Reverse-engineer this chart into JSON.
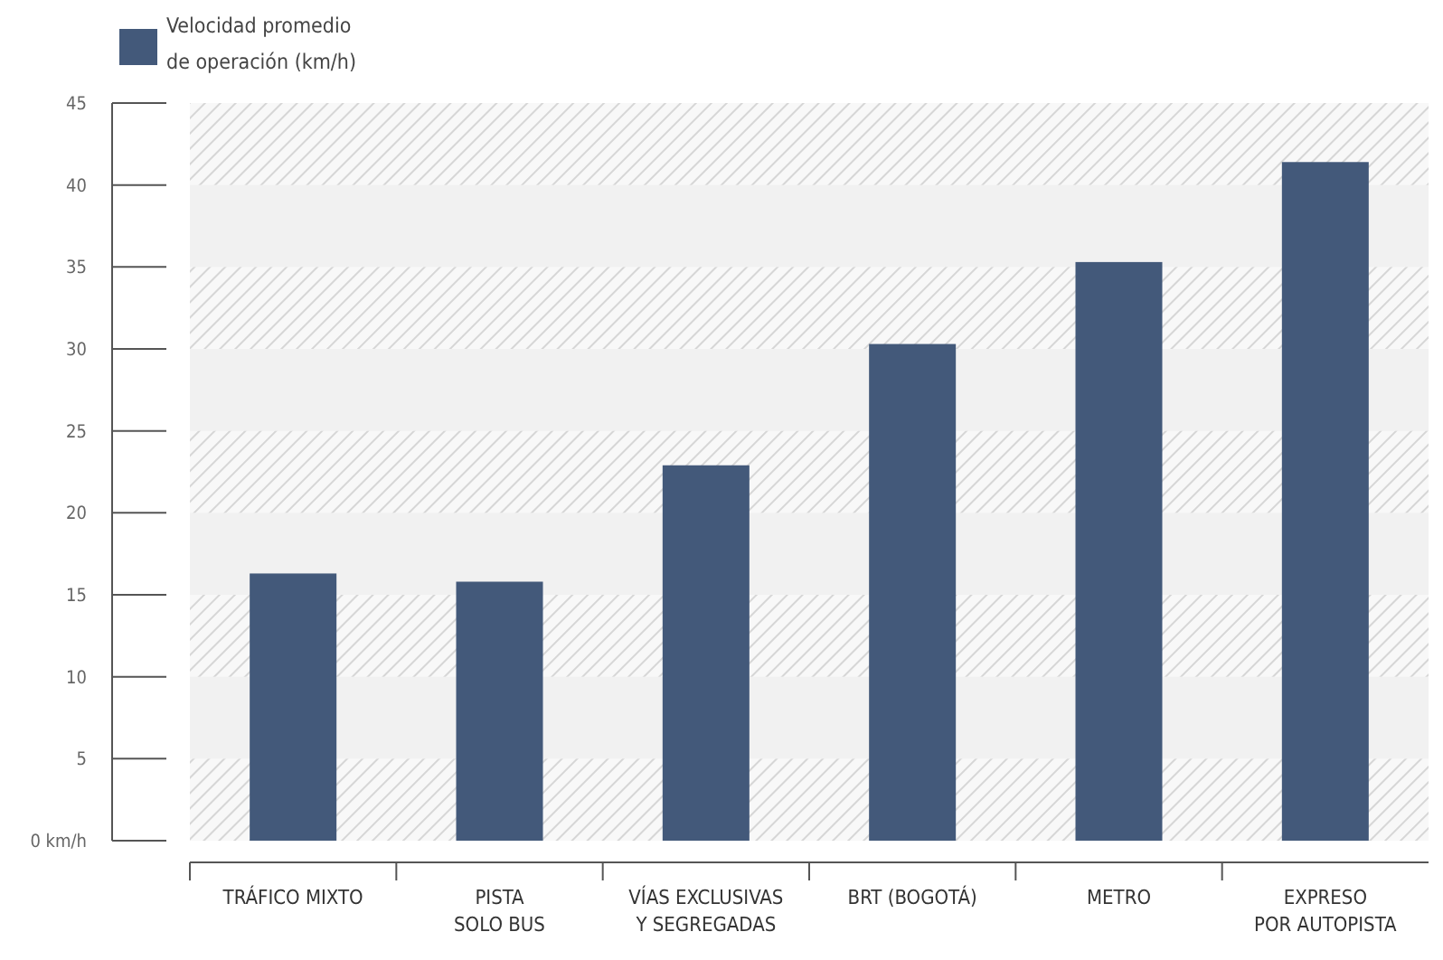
{
  "chart_data": {
    "type": "bar",
    "categories": [
      "TRÁFICO MIXTO",
      "PISTA\nSOLO BUS",
      "VÍAS EXCLUSIVAS\nY SEGREGADAS",
      "BRT (BOGOTÁ)",
      "METRO",
      "EXPRESO\nPOR AUTOPISTA"
    ],
    "series": [
      {
        "name": "Velocidad promedio\nde operación (km/h)",
        "color": "#43597a",
        "values": [
          16.3,
          15.8,
          22.9,
          30.3,
          35.3,
          41.4
        ]
      }
    ],
    "ylim": [
      0,
      45
    ],
    "yticks": [
      {
        "value": 0,
        "label": "0 km/h"
      },
      5,
      10,
      15,
      20,
      25,
      30,
      35,
      40,
      45
    ],
    "bands": [
      {
        "axis": "y",
        "from": 0,
        "to": 5,
        "color": "#f8f8f8"
      },
      {
        "axis": "y",
        "from": 10,
        "to": 15,
        "color": "#f8f8f8"
      },
      {
        "axis": "y",
        "from": 20,
        "to": 25,
        "color": "#f8f8f8"
      },
      {
        "axis": "y",
        "from": 30,
        "to": 35,
        "color": "#f8f8f8"
      },
      {
        "axis": "y",
        "from": 40,
        "to": 45,
        "color": "#f8f8f8"
      }
    ],
    "legend": "top left"
  }
}
